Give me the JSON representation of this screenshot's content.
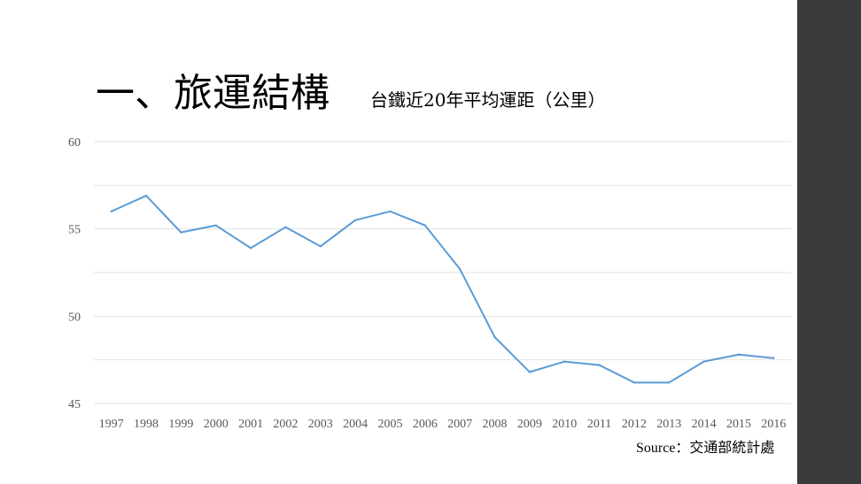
{
  "slide": {
    "title": "一、旅運結構",
    "subtitle": "台鐵近20年平均運距（公里）",
    "source": "Source：交通部統計處"
  },
  "colors": {
    "line": "#5b9bd5",
    "grid": "#e3e3e3",
    "axis_label": "#595959",
    "sidebar": "#3b3b3b"
  },
  "chart_data": {
    "type": "line",
    "title": "",
    "xlabel": "",
    "ylabel": "",
    "categories": [
      "1997",
      "1998",
      "1999",
      "2000",
      "2001",
      "2002",
      "2003",
      "2004",
      "2005",
      "2006",
      "2007",
      "2008",
      "2009",
      "2010",
      "2011",
      "2012",
      "2013",
      "2014",
      "2015",
      "2016"
    ],
    "series": [
      {
        "values": [
          56.0,
          56.9,
          54.8,
          55.2,
          53.9,
          55.1,
          54.0,
          55.5,
          56.0,
          55.2,
          52.7,
          48.8,
          46.8,
          47.4,
          47.2,
          46.2,
          46.2,
          47.4,
          47.8,
          47.6
        ]
      }
    ],
    "ylim": [
      45,
      60
    ],
    "yticks": [
      45,
      50,
      55,
      60
    ],
    "grid": true,
    "legend": "none"
  }
}
